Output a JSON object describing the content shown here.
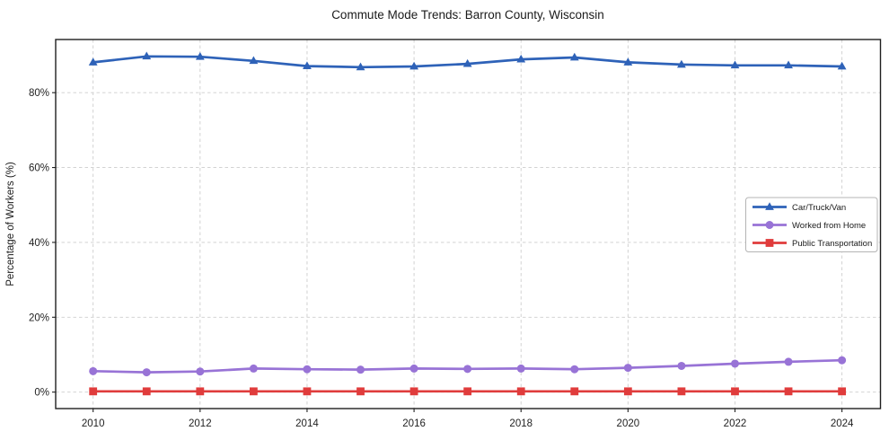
{
  "chart_data": {
    "type": "line",
    "title": "Commute Mode Trends: Barron County, Wisconsin",
    "xlabel": "",
    "ylabel": "Percentage of Workers (%)",
    "x": [
      2010,
      2011,
      2012,
      2013,
      2014,
      2015,
      2016,
      2017,
      2018,
      2019,
      2020,
      2021,
      2022,
      2023,
      2024
    ],
    "series": [
      {
        "name": "Car/Truck/Van",
        "color": "#2e62b8",
        "marker": "triangle",
        "values": [
          88.1,
          89.7,
          89.6,
          88.5,
          87.1,
          86.8,
          87.0,
          87.7,
          88.9,
          89.4,
          88.1,
          87.5,
          87.3,
          87.3,
          87.0
        ]
      },
      {
        "name": "Worked from Home",
        "color": "#9873d6",
        "marker": "circle",
        "values": [
          5.6,
          5.3,
          5.5,
          6.3,
          6.1,
          6.0,
          6.3,
          6.2,
          6.3,
          6.1,
          6.5,
          7.0,
          7.6,
          8.1,
          8.5
        ]
      },
      {
        "name": "Public Transportation",
        "color": "#e03c3c",
        "marker": "square",
        "values": [
          0.2,
          0.2,
          0.2,
          0.2,
          0.2,
          0.2,
          0.2,
          0.2,
          0.2,
          0.2,
          0.2,
          0.2,
          0.2,
          0.2,
          0.2
        ]
      }
    ],
    "xticks": [
      2010,
      2012,
      2014,
      2016,
      2018,
      2020,
      2022,
      2024
    ],
    "yticks": [
      0,
      20,
      40,
      60,
      80
    ],
    "ytick_suffix": "%",
    "xlim": [
      2009.3,
      2024.72
    ],
    "ylim": [
      -4.4,
      94.2
    ],
    "grid": true,
    "grid_style": "dashed",
    "legend_position": "right-middle",
    "style": {
      "background": "#ffffff",
      "grid_color": "#cdcdcd",
      "axis_color": "#1f1f1f",
      "text_color": "#1a1a1a",
      "legend_border_color": "#b4b4b4"
    }
  }
}
